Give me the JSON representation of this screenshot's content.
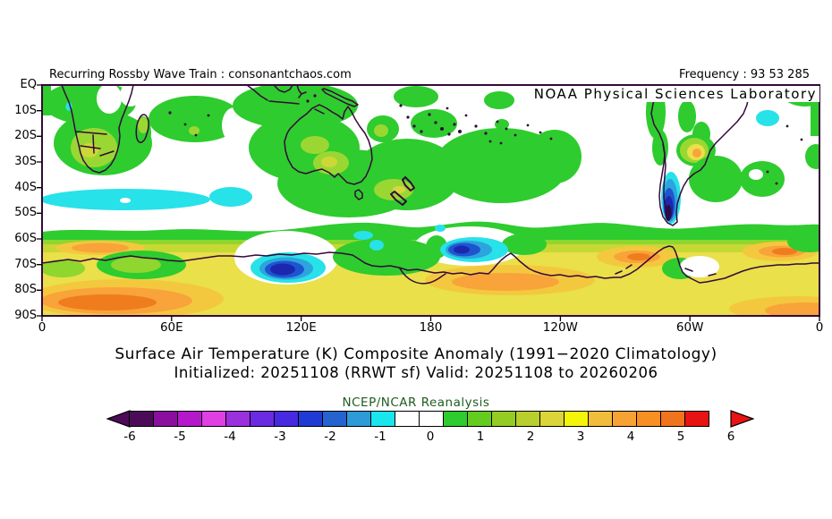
{
  "header": {
    "left": "Recurring Rossby Wave Train : consonantchaos.com",
    "right": "Frequency : 93 53 285"
  },
  "map": {
    "agency": "NOAA Physical Sciences Laboratory",
    "lat_labels": [
      "EQ",
      "10S",
      "20S",
      "30S",
      "40S",
      "50S",
      "60S",
      "70S",
      "80S",
      "90S"
    ],
    "lon_labels": [
      "0",
      "60E",
      "120E",
      "180",
      "120W",
      "60W",
      "0"
    ]
  },
  "titles": {
    "line1": "Surface Air Temperature (K) Composite Anomaly (1991−2020 Climatology)",
    "line2": "Initialized: 20251108 (RRWT sf) Valid: 20251108 to 20260206",
    "source": "NCEP/NCAR Reanalysis"
  },
  "colorbar": {
    "tick_labels": [
      "-6",
      "-5",
      "-4",
      "-3",
      "-2",
      "-1",
      "0",
      "1",
      "2",
      "3",
      "4",
      "5",
      "6"
    ],
    "segment_colors": [
      "#4c0b57",
      "#8a0f9e",
      "#b517cb",
      "#df3fe3",
      "#9b30dd",
      "#6a2be2",
      "#4629e0",
      "#1f3bd4",
      "#2563cf",
      "#2e9ad8",
      "#19e5ee",
      "#ffffff",
      "#ffffff",
      "#2ecc2e",
      "#63cc1f",
      "#94cc24",
      "#b8cf2e",
      "#dcd53a",
      "#f5f50a",
      "#f0bc3c",
      "#f7a234",
      "#f78f22",
      "#f0741d",
      "#e81313"
    ],
    "left_arrow_color": "#4c0b57",
    "right_arrow_color": "#e81313"
  },
  "palette": {
    "map_green": "#2ecc2e",
    "map_light_green": "#8fd62f",
    "map_yellow_green": "#c6d834",
    "map_yellow": "#e9e04a",
    "map_yellow_orange": "#f4c83e",
    "map_orange": "#f8a43a",
    "map_deep_orange": "#ef7d1e",
    "map_cyan": "#27e2e8",
    "map_light_blue": "#2da4de",
    "map_blue": "#1e55cf",
    "map_navy": "#1b27ae",
    "map_dark_core": "#2b0b46",
    "coastline": "#35083a",
    "source_text": "#1e5c1e"
  }
}
